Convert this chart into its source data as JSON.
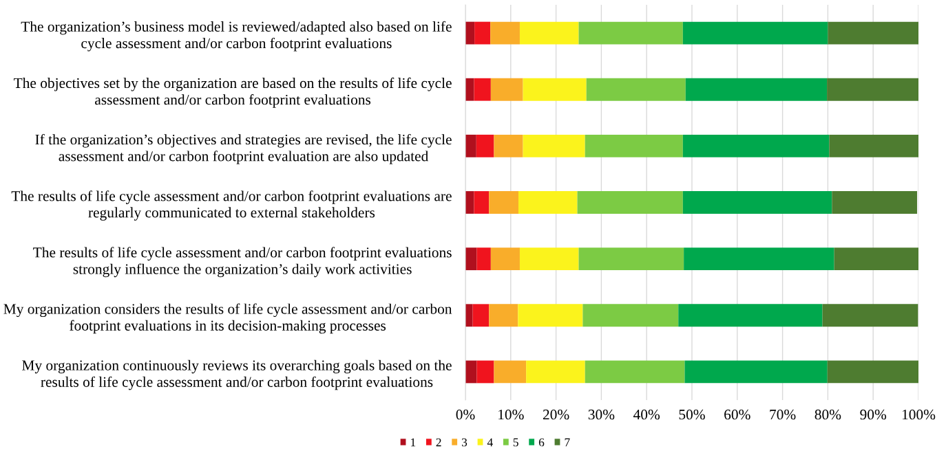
{
  "chart_data": {
    "type": "bar",
    "orientation": "horizontal",
    "stacked": true,
    "categories": [
      "The organization’s business model is reviewed/adapted also based on life\ncycle assessment and/or carbon footprint evaluations",
      "The objectives set by the organization are based on the results of life cycle\nassessment and/or carbon footprint evaluations",
      "If the organization’s objectives and strategies are revised, the life cycle\nassessment and/or carbon footprint evaluation are also updated",
      "The results of life cycle assessment and/or carbon footprint evaluations are\nregularly communicated to external stakeholders",
      "The results of life cycle assessment and/or carbon footprint evaluations\nstrongly influence the organization’s daily work activities",
      "My organization considers the results of life cycle assessment and/or carbon\nfootprint evaluations in its decision-making processes",
      "My organization continuously reviews its overarching goals based on the\nresults of life cycle assessment and/or carbon footprint evaluations"
    ],
    "series": [
      {
        "name": "1",
        "color": "#b0101e",
        "values": [
          2.0,
          1.9,
          2.4,
          1.9,
          2.5,
          1.6,
          2.5
        ]
      },
      {
        "name": "2",
        "color": "#f0141e",
        "values": [
          3.5,
          3.7,
          3.9,
          3.3,
          3.1,
          3.6,
          3.8
        ]
      },
      {
        "name": "3",
        "color": "#f9ad2a",
        "values": [
          6.5,
          7.1,
          6.4,
          6.5,
          6.4,
          6.4,
          7.1
        ]
      },
      {
        "name": "4",
        "color": "#fbf31c",
        "values": [
          13.0,
          14.0,
          13.7,
          13.0,
          13.0,
          14.3,
          13.0
        ]
      },
      {
        "name": "5",
        "color": "#7ccb44",
        "values": [
          23.0,
          21.9,
          21.6,
          23.3,
          23.2,
          21.1,
          22.0
        ]
      },
      {
        "name": "6",
        "color": "#00a84d",
        "values": [
          32.0,
          31.2,
          32.3,
          32.9,
          33.2,
          31.8,
          31.5
        ]
      },
      {
        "name": "7",
        "color": "#4e7c30",
        "values": [
          20.0,
          20.2,
          19.7,
          18.8,
          18.6,
          21.1,
          20.2
        ]
      }
    ],
    "xlim": [
      0,
      100
    ],
    "xticks": [
      {
        "value": 0,
        "label": "0%"
      },
      {
        "value": 10,
        "label": "10%"
      },
      {
        "value": 20,
        "label": "20%"
      },
      {
        "value": 30,
        "label": "30%"
      },
      {
        "value": 40,
        "label": "40%"
      },
      {
        "value": 50,
        "label": "50%"
      },
      {
        "value": 60,
        "label": "60%"
      },
      {
        "value": 70,
        "label": "70%"
      },
      {
        "value": 80,
        "label": "80%"
      },
      {
        "value": 90,
        "label": "90%"
      },
      {
        "value": 100,
        "label": "100%"
      }
    ],
    "grid": "x",
    "legend": "bottom"
  }
}
